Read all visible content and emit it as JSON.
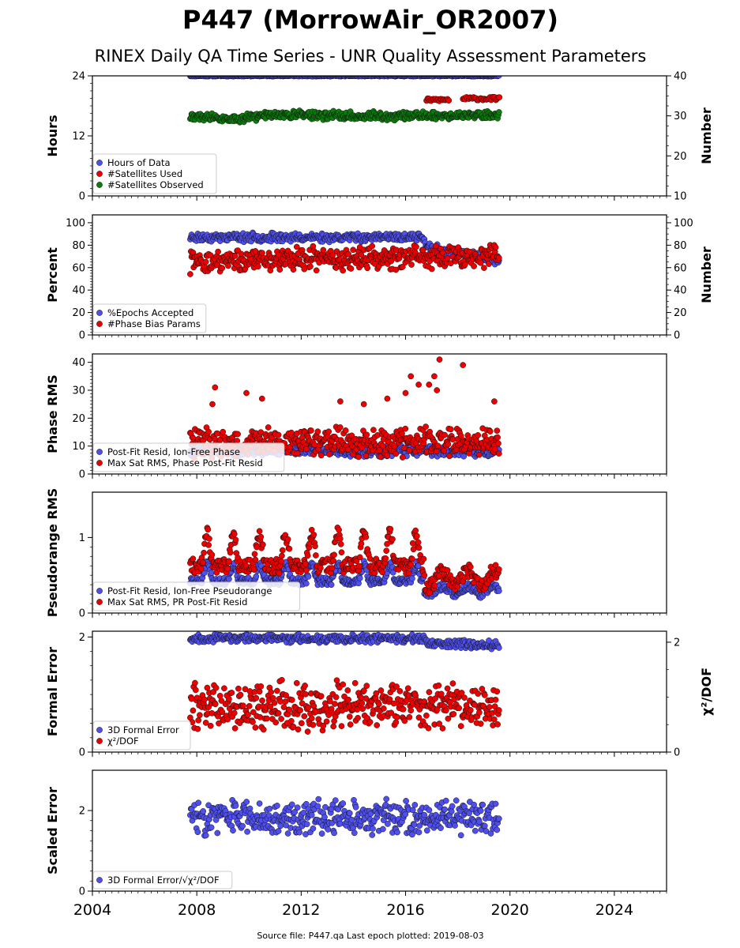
{
  "title": "P447 (MorrowAir_OR2007)",
  "subtitle": "RINEX Daily QA Time Series - UNR Quality Assessment Parameters",
  "footer": "Source file: P447.qa Last epoch plotted: 2019-08-03",
  "colors": {
    "blue": "#4f4fef",
    "red": "#ee0000",
    "green": "#0a7d0a",
    "edge": "#111111"
  },
  "chart_data": [
    {
      "type": "scatter",
      "panel": "hours",
      "xlim": [
        2004,
        2026
      ],
      "x_ticks": [
        "2004",
        "2008",
        "2012",
        "2016",
        "2020",
        "2024"
      ],
      "ylabel": "Hours",
      "ylim": [
        0,
        24
      ],
      "y_ticks": [
        "0",
        "12",
        "24"
      ],
      "ylabel_right": "Number",
      "ylim_right": [
        10,
        40
      ],
      "y_ticks_right": [
        "10",
        "20",
        "30",
        "40"
      ],
      "legend_position": "lower-left",
      "series": [
        {
          "name": "Hours of Data",
          "color": "blue",
          "axis": "left",
          "x_range": [
            2007.75,
            2019.6
          ],
          "y": 24,
          "spread": 0.2
        },
        {
          "name": "#Satellites Used",
          "color": "red",
          "axis": "right",
          "segments": [
            [
              2016.8,
              2017.7,
              34.0
            ],
            [
              2018.2,
              2019.6,
              34.3
            ]
          ],
          "spread": 0.8
        },
        {
          "name": "#Satellites Observed",
          "color": "green",
          "axis": "right",
          "x_range": [
            2007.75,
            2019.6
          ],
          "profile": [
            [
              2007.75,
              29.8
            ],
            [
              2009.5,
              29.0
            ],
            [
              2010.6,
              30.2
            ],
            [
              2012.0,
              30.3
            ],
            [
              2014.0,
              29.9
            ],
            [
              2016.0,
              30.1
            ],
            [
              2018.0,
              30.0
            ],
            [
              2019.6,
              30.3
            ]
          ],
          "spread": 1.4
        }
      ]
    },
    {
      "type": "scatter",
      "panel": "percent",
      "xlim": [
        2004,
        2026
      ],
      "ylabel": "Percent",
      "ylim": [
        0,
        107
      ],
      "y_ticks": [
        "0",
        "20",
        "40",
        "60",
        "80",
        "100"
      ],
      "ylabel_right": "Number",
      "ylim_right": [
        0,
        107
      ],
      "y_ticks_right": [
        "0",
        "20",
        "40",
        "60",
        "80",
        "100"
      ],
      "legend_position": "lower-left",
      "series": [
        {
          "name": "%Epochs Accepted",
          "color": "blue",
          "axis": "left",
          "x_range": [
            2007.75,
            2019.6
          ],
          "profile": [
            [
              2007.75,
              87
            ],
            [
              2016.7,
              87
            ],
            [
              2016.8,
              78
            ],
            [
              2018.3,
              72
            ],
            [
              2019.6,
              66
            ]
          ],
          "spread": 5
        },
        {
          "name": "#Phase Bias Params",
          "color": "red",
          "axis": "right",
          "x_range": [
            2007.75,
            2019.6
          ],
          "profile": [
            [
              2007.75,
              65
            ],
            [
              2012.0,
              68
            ],
            [
              2016.0,
              69
            ],
            [
              2019.6,
              70
            ]
          ],
          "spread": 13
        }
      ]
    },
    {
      "type": "scatter",
      "panel": "phase_rms",
      "xlim": [
        2004,
        2026
      ],
      "ylabel": "Phase RMS",
      "ylim": [
        0,
        43
      ],
      "y_ticks": [
        "0",
        "10",
        "20",
        "30",
        "40"
      ],
      "legend_position": "lower-left",
      "series": [
        {
          "name": "Post-Fit Resid, Ion-Free Phase",
          "color": "blue",
          "axis": "left",
          "x_range": [
            2007.75,
            2019.6
          ],
          "profile": [
            [
              2007.75,
              8.5
            ],
            [
              2019.6,
              8.0
            ]
          ],
          "spread": 2.5
        },
        {
          "name": "Max Sat RMS, Phase Post-Fit Resid",
          "color": "red",
          "axis": "left",
          "x_range": [
            2007.75,
            2019.6
          ],
          "profile": [
            [
              2007.75,
              11
            ],
            [
              2013.0,
              12
            ],
            [
              2019.6,
              11
            ]
          ],
          "spread": 7
        },
        {
          "name": "Max Sat RMS, Phase Post-Fit Resid outliers",
          "color": "red",
          "axis": "left",
          "points": [
            [
              2008.7,
              31
            ],
            [
              2009.9,
              29
            ],
            [
              2010.5,
              27
            ],
            [
              2015.3,
              27
            ],
            [
              2016.0,
              29
            ],
            [
              2016.2,
              35
            ],
            [
              2016.5,
              32
            ],
            [
              2016.9,
              32
            ],
            [
              2017.1,
              35
            ],
            [
              2017.2,
              30
            ],
            [
              2017.3,
              41
            ],
            [
              2018.2,
              39
            ],
            [
              2019.4,
              26
            ],
            [
              2013.5,
              26
            ],
            [
              2014.4,
              25
            ],
            [
              2008.6,
              25
            ]
          ]
        }
      ]
    },
    {
      "type": "scatter",
      "panel": "pseudorange_rms",
      "xlim": [
        2004,
        2026
      ],
      "ylabel": "Pseudorange RMS",
      "ylim": [
        0,
        1.6
      ],
      "y_ticks": [
        "0",
        "1"
      ],
      "legend_position": "lower-left",
      "series": [
        {
          "name": "Post-Fit Resid, Ion-Free Pseudorange",
          "color": "blue",
          "axis": "left",
          "x_range": [
            2007.75,
            2019.6
          ],
          "seasonal": {
            "base_early": 0.42,
            "amp_early": 0.22,
            "base_late": 0.3,
            "amp_late": 0.05,
            "break": 2016.7
          },
          "spread": 0.1
        },
        {
          "name": "Max Sat RMS, PR Post-Fit Resid",
          "color": "red",
          "axis": "left",
          "x_range": [
            2007.75,
            2019.6
          ],
          "seasonal": {
            "base_early": 0.62,
            "amp_early": 0.42,
            "base_late": 0.45,
            "amp_late": 0.1,
            "break": 2016.7
          },
          "spread": 0.2
        }
      ]
    },
    {
      "type": "scatter",
      "panel": "formal_error",
      "xlim": [
        2004,
        2026
      ],
      "ylabel": "Formal Error",
      "ylim": [
        0,
        2.1
      ],
      "y_ticks": [
        "0",
        "2"
      ],
      "ylabel_right": "χ²/DOF",
      "ylim_right": [
        0,
        2.2
      ],
      "y_ticks_right": [
        "0",
        "2"
      ],
      "legend_position": "lower-left",
      "series": [
        {
          "name": "3D Formal Error",
          "color": "blue",
          "axis": "left",
          "x_range": [
            2007.75,
            2019.6
          ],
          "profile": [
            [
              2007.75,
              1.98
            ],
            [
              2016.7,
              1.97
            ],
            [
              2016.8,
              1.87
            ],
            [
              2019.6,
              1.87
            ]
          ],
          "spread": 0.09
        },
        {
          "name": "χ²/DOF",
          "color": "red",
          "axis": "right",
          "x_range": [
            2007.75,
            2019.6
          ],
          "profile": [
            [
              2007.75,
              0.85
            ],
            [
              2019.6,
              0.85
            ]
          ],
          "spread": 0.55
        }
      ]
    },
    {
      "type": "scatter",
      "panel": "scaled_error",
      "xlim": [
        2004,
        2026
      ],
      "ylabel": "Scaled Error",
      "ylim": [
        0,
        3.0
      ],
      "y_ticks": [
        "0",
        "2"
      ],
      "legend_position": "lower-left",
      "series": [
        {
          "name": "3D Formal Error/√χ²/DOF",
          "color": "blue",
          "axis": "left",
          "x_range": [
            2007.75,
            2019.6
          ],
          "profile": [
            [
              2007.75,
              1.85
            ],
            [
              2019.6,
              1.8
            ]
          ],
          "spread": 0.55
        }
      ]
    }
  ]
}
